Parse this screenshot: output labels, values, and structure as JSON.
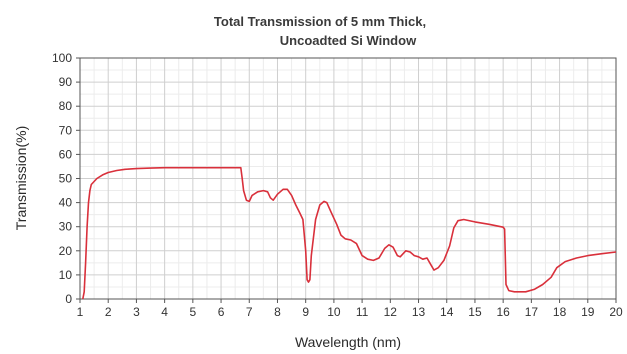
{
  "chart_data": {
    "type": "line",
    "title_lines": [
      "Total Transmission of 5 mm Thick,",
      "Uncoadted Si Window"
    ],
    "xlabel": "Wavelength (nm)",
    "ylabel": "Transmission(%)",
    "xlim": [
      1,
      20
    ],
    "ylim": [
      0,
      100
    ],
    "xticks": [
      "1",
      "2",
      "3",
      "4",
      "5",
      "6",
      "7",
      "8",
      "9",
      "10",
      "11",
      "12",
      "13",
      "14",
      "15",
      "16",
      "17",
      "18",
      "19",
      "20"
    ],
    "yticks": [
      "0",
      "10",
      "20",
      "30",
      "40",
      "50",
      "60",
      "70",
      "80",
      "90",
      "100"
    ],
    "grid": true,
    "series": [
      {
        "color": "#d9303b",
        "points": [
          [
            1.1,
            0
          ],
          [
            1.15,
            3
          ],
          [
            1.2,
            15
          ],
          [
            1.25,
            30
          ],
          [
            1.3,
            40
          ],
          [
            1.35,
            45
          ],
          [
            1.4,
            47.5
          ],
          [
            1.6,
            50
          ],
          [
            1.8,
            51.5
          ],
          [
            2.0,
            52.5
          ],
          [
            2.3,
            53.3
          ],
          [
            2.6,
            53.8
          ],
          [
            3.0,
            54.1
          ],
          [
            3.5,
            54.3
          ],
          [
            4.0,
            54.5
          ],
          [
            5.0,
            54.5
          ],
          [
            6.0,
            54.5
          ],
          [
            6.5,
            54.5
          ],
          [
            6.7,
            54.5
          ],
          [
            6.75,
            50
          ],
          [
            6.8,
            45
          ],
          [
            6.9,
            41
          ],
          [
            7.0,
            40.5
          ],
          [
            7.1,
            43
          ],
          [
            7.3,
            44.5
          ],
          [
            7.5,
            45
          ],
          [
            7.65,
            44.5
          ],
          [
            7.75,
            42
          ],
          [
            7.85,
            41
          ],
          [
            8.0,
            43.5
          ],
          [
            8.2,
            45.5
          ],
          [
            8.35,
            45.5
          ],
          [
            8.5,
            43
          ],
          [
            8.65,
            39
          ],
          [
            8.8,
            35.5
          ],
          [
            8.9,
            33
          ],
          [
            9.0,
            20
          ],
          [
            9.05,
            8
          ],
          [
            9.1,
            7
          ],
          [
            9.15,
            8
          ],
          [
            9.2,
            18
          ],
          [
            9.35,
            33
          ],
          [
            9.5,
            39
          ],
          [
            9.65,
            40.5
          ],
          [
            9.75,
            40
          ],
          [
            9.9,
            36
          ],
          [
            10.1,
            31
          ],
          [
            10.25,
            26.5
          ],
          [
            10.4,
            25
          ],
          [
            10.6,
            24.5
          ],
          [
            10.8,
            23
          ],
          [
            11.0,
            18
          ],
          [
            11.2,
            16.5
          ],
          [
            11.4,
            16
          ],
          [
            11.6,
            17
          ],
          [
            11.8,
            21
          ],
          [
            11.95,
            22.5
          ],
          [
            12.1,
            21.5
          ],
          [
            12.25,
            18
          ],
          [
            12.35,
            17.5
          ],
          [
            12.55,
            20
          ],
          [
            12.7,
            19.5
          ],
          [
            12.85,
            18
          ],
          [
            13.0,
            17.5
          ],
          [
            13.15,
            16.5
          ],
          [
            13.3,
            17
          ],
          [
            13.45,
            14
          ],
          [
            13.55,
            12
          ],
          [
            13.7,
            13
          ],
          [
            13.9,
            16
          ],
          [
            14.1,
            22
          ],
          [
            14.25,
            29.5
          ],
          [
            14.4,
            32.5
          ],
          [
            14.6,
            33
          ],
          [
            15.0,
            32
          ],
          [
            15.5,
            31
          ],
          [
            16.0,
            29.8
          ],
          [
            16.05,
            29
          ],
          [
            16.1,
            6
          ],
          [
            16.2,
            3.5
          ],
          [
            16.4,
            3
          ],
          [
            16.8,
            3
          ],
          [
            17.1,
            4
          ],
          [
            17.4,
            6
          ],
          [
            17.7,
            9
          ],
          [
            17.9,
            13
          ],
          [
            18.2,
            15.5
          ],
          [
            18.6,
            17
          ],
          [
            19.0,
            18
          ],
          [
            19.5,
            18.8
          ],
          [
            20.0,
            19.5
          ]
        ]
      }
    ]
  }
}
